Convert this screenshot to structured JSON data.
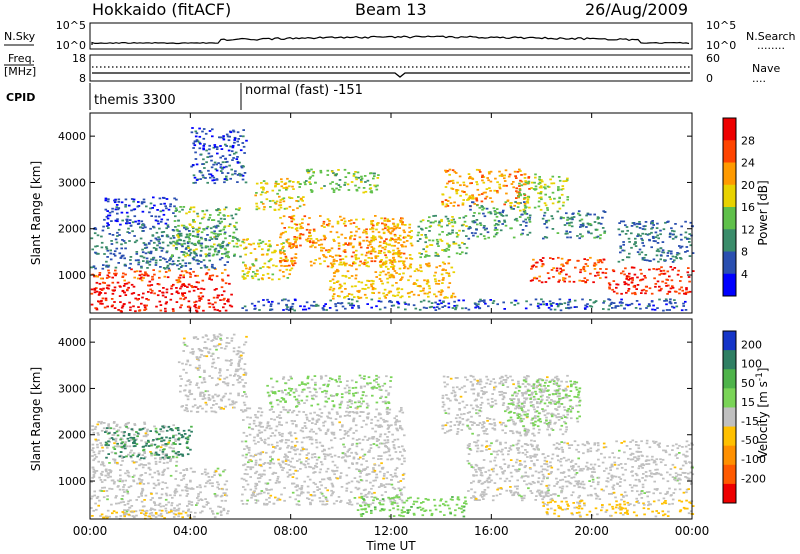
{
  "header": {
    "station": "Hokkaido (fitACF)",
    "beam": "Beam 13",
    "date": "26/Aug/2009"
  },
  "side_labels": {
    "nsky": "N.Sky",
    "nsearch": "N.Search",
    "nsearch_line": "........",
    "freq_line1": "Freq.",
    "freq_line2": "[MHz]",
    "nave": "Nave",
    "nave_line": "....",
    "cpid": "CPID"
  },
  "noise_panel": {
    "left_ticks": [
      "10^5",
      "10^0"
    ],
    "right_ticks": [
      "10^5",
      "10^0"
    ]
  },
  "freq_panel": {
    "left_ticks": [
      "18",
      "8"
    ],
    "right_ticks": [
      "60",
      "0"
    ]
  },
  "cpid_panel": {
    "segments": [
      {
        "label": "themis 3300",
        "start_hour": 0,
        "end_hour": 6
      },
      {
        "label": "normal (fast) -151",
        "start_hour": 6,
        "end_hour": 24
      }
    ]
  },
  "range_axis": {
    "label": "Slant Range [km]",
    "ticks": [
      "1000",
      "2000",
      "3000",
      "4000"
    ]
  },
  "time_axis": {
    "label": "Time UT",
    "ticks": [
      "00:00",
      "04:00",
      "08:00",
      "12:00",
      "16:00",
      "20:00",
      "00:00"
    ]
  },
  "power_colorbar": {
    "label": "Power [dB]",
    "ticks": [
      "4",
      "8",
      "12",
      "16",
      "20",
      "24",
      "28"
    ],
    "colors": [
      "#0000ff",
      "#2a4fb0",
      "#3a8c6a",
      "#5fc04a",
      "#e8d200",
      "#ff9a00",
      "#ff4400",
      "#ee0000"
    ]
  },
  "velocity_colorbar": {
    "label": "Velocity [m s",
    "label_sup": "-1",
    "label_end": "]",
    "ticks": [
      "200",
      "100",
      "50",
      "15",
      "-15",
      "-50",
      "-100",
      "-200"
    ],
    "colors": [
      "#1535c8",
      "#2f7f63",
      "#4eb34a",
      "#7ad457",
      "#c0c0c0",
      "#ffc000",
      "#ff9000",
      "#ff5a00",
      "#ee0000"
    ]
  },
  "chart_data": {
    "type": "heatmap",
    "title": "Hokkaido (fitACF) Beam 13 26/Aug/2009",
    "xlabel": "Time UT",
    "ylabel": "Slant Range [km]",
    "xlim": [
      0,
      24
    ],
    "ylim": [
      180,
      4500
    ],
    "panels": [
      {
        "name": "Power",
        "unit": "dB",
        "colorbar_range": [
          0,
          32
        ],
        "scatter_regions": [
          {
            "t0": 0.0,
            "t1": 5.6,
            "r0": 230,
            "r1": 850,
            "value": 30
          },
          {
            "t0": 0.0,
            "t1": 5.5,
            "r0": 850,
            "r1": 1150,
            "value": 26
          },
          {
            "t0": 0.0,
            "t1": 5.5,
            "r0": 1150,
            "r1": 2100,
            "value": 8
          },
          {
            "t0": 0.5,
            "t1": 3.5,
            "r0": 2100,
            "r1": 2700,
            "value": 5
          },
          {
            "t0": 3.2,
            "t1": 6.0,
            "r0": 1400,
            "r1": 2500,
            "value": 14
          },
          {
            "t0": 4.0,
            "t1": 6.2,
            "r0": 3000,
            "r1": 4200,
            "value": 6
          },
          {
            "t0": 6.5,
            "t1": 8.5,
            "r0": 2400,
            "r1": 3100,
            "value": 18
          },
          {
            "t0": 6.0,
            "t1": 8.0,
            "r0": 900,
            "r1": 1800,
            "value": 18
          },
          {
            "t0": 7.5,
            "t1": 12.5,
            "r0": 1200,
            "r1": 2300,
            "value": 22
          },
          {
            "t0": 8.5,
            "t1": 11.5,
            "r0": 2800,
            "r1": 3300,
            "value": 14
          },
          {
            "t0": 9.5,
            "t1": 14.5,
            "r0": 500,
            "r1": 1300,
            "value": 20
          },
          {
            "t0": 11.0,
            "t1": 12.8,
            "r0": 1300,
            "r1": 2200,
            "value": 20
          },
          {
            "t0": 13.0,
            "t1": 15.0,
            "r0": 1400,
            "r1": 2300,
            "value": 14
          },
          {
            "t0": 14.0,
            "t1": 17.5,
            "r0": 2500,
            "r1": 3300,
            "value": 22
          },
          {
            "t0": 15.0,
            "t1": 17.5,
            "r0": 1800,
            "r1": 2600,
            "value": 10
          },
          {
            "t0": 17.0,
            "t1": 19.0,
            "r0": 2400,
            "r1": 3200,
            "value": 16
          },
          {
            "t0": 18.0,
            "t1": 20.5,
            "r0": 1800,
            "r1": 2400,
            "value": 10
          },
          {
            "t0": 17.5,
            "t1": 20.5,
            "r0": 850,
            "r1": 1400,
            "value": 26
          },
          {
            "t0": 20.5,
            "t1": 24.0,
            "r0": 600,
            "r1": 1200,
            "value": 28
          },
          {
            "t0": 21.0,
            "t1": 24.0,
            "r0": 1300,
            "r1": 2200,
            "value": 8
          },
          {
            "t0": 6.0,
            "t1": 24.0,
            "r0": 250,
            "r1": 500,
            "value": 6
          }
        ]
      },
      {
        "name": "Velocity",
        "unit": "m s^-1",
        "colorbar_range": [
          -250,
          250
        ],
        "scatter_regions": [
          {
            "t0": 0.0,
            "t1": 5.5,
            "r0": 230,
            "r1": 1300,
            "value": 0
          },
          {
            "t0": 0.0,
            "t1": 3.5,
            "r0": 1300,
            "r1": 2300,
            "value": 0
          },
          {
            "t0": 0.5,
            "t1": 4.0,
            "r0": 1500,
            "r1": 2200,
            "value": 150
          },
          {
            "t0": 3.5,
            "t1": 6.2,
            "r0": 2500,
            "r1": 4200,
            "value": 0
          },
          {
            "t0": 6.0,
            "t1": 12.5,
            "r0": 500,
            "r1": 2600,
            "value": 0
          },
          {
            "t0": 7.0,
            "t1": 12.0,
            "r0": 2600,
            "r1": 3300,
            "value": 30
          },
          {
            "t0": 10.5,
            "t1": 15.0,
            "r0": 250,
            "r1": 700,
            "value": 60
          },
          {
            "t0": 14.0,
            "t1": 19.0,
            "r0": 2000,
            "r1": 3300,
            "value": 0
          },
          {
            "t0": 16.5,
            "t1": 19.5,
            "r0": 2200,
            "r1": 3200,
            "value": 40
          },
          {
            "t0": 15.0,
            "t1": 24.0,
            "r0": 600,
            "r1": 1900,
            "value": 0
          },
          {
            "t0": 18.0,
            "t1": 24.0,
            "r0": 250,
            "r1": 600,
            "value": -40
          },
          {
            "t0": 0.0,
            "t1": 4.0,
            "r0": 200,
            "r1": 400,
            "value": -40
          }
        ]
      }
    ]
  }
}
